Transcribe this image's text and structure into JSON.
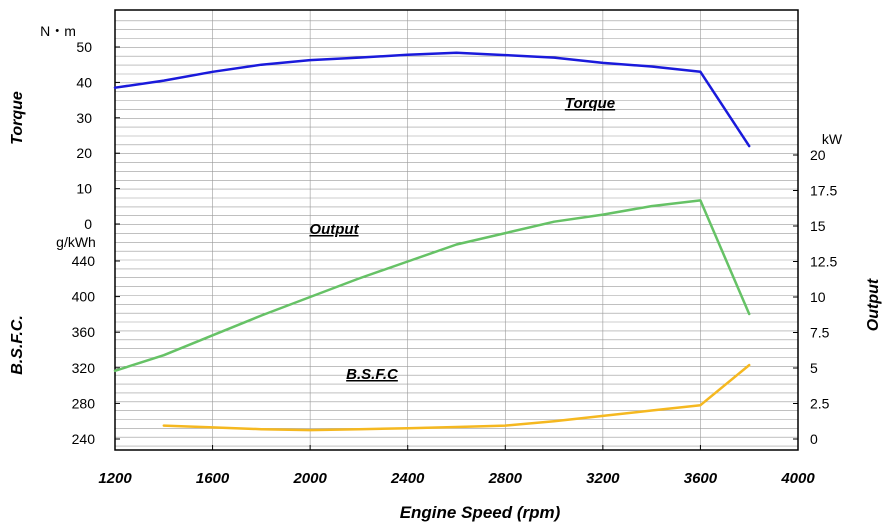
{
  "chart_data": {
    "type": "line",
    "xlabel": "Engine Speed  (rpm)",
    "x_ticks": [
      "1200",
      "1600",
      "2000",
      "2400",
      "2800",
      "3200",
      "3600",
      "4000"
    ],
    "xlim": [
      1200,
      4000
    ],
    "grid": true,
    "axes": {
      "torque": {
        "label": "Torque",
        "unit": "N・m",
        "ticks": [
          "0",
          "10",
          "20",
          "30",
          "40",
          "50"
        ],
        "range": [
          0,
          50
        ],
        "side": "left"
      },
      "bsfc": {
        "label": "B.S.F.C.",
        "unit": "g/kWh",
        "ticks": [
          "240",
          "280",
          "320",
          "360",
          "400",
          "440"
        ],
        "range": [
          240,
          440
        ],
        "side": "left"
      },
      "output": {
        "label": "Output",
        "unit": "kW",
        "ticks": [
          "0",
          "2.5",
          "5",
          "7.5",
          "10",
          "12.5",
          "15",
          "17.5",
          "20"
        ],
        "range": [
          0,
          20
        ],
        "side": "right"
      }
    },
    "series": [
      {
        "name": "Torque",
        "axis": "torque",
        "color": "#1a1adb",
        "x": [
          1200,
          1400,
          1600,
          1800,
          2000,
          2200,
          2400,
          2600,
          2800,
          3000,
          3200,
          3400,
          3600,
          3800
        ],
        "y": [
          38.5,
          40.5,
          43,
          45,
          46.3,
          47,
          47.8,
          48.4,
          47.7,
          47,
          45.5,
          44.5,
          43,
          22
        ]
      },
      {
        "name": "Output",
        "axis": "output",
        "color": "#66c266",
        "x": [
          1200,
          1400,
          1600,
          1800,
          2000,
          2200,
          2400,
          2600,
          2800,
          3000,
          3200,
          3400,
          3600,
          3800
        ],
        "y": [
          4.8,
          5.9,
          7.3,
          8.7,
          10,
          11.3,
          12.5,
          13.7,
          14.5,
          15.3,
          15.8,
          16.4,
          16.8,
          8.8
        ]
      },
      {
        "name": "B.S.F.C",
        "axis": "bsfc",
        "color": "#f5b820",
        "x": [
          1400,
          1600,
          1800,
          2000,
          2200,
          2400,
          2600,
          2800,
          3000,
          3200,
          3400,
          3600,
          3800
        ],
        "y": [
          255,
          253,
          251,
          250,
          251,
          252,
          253.5,
          255,
          260,
          266,
          272,
          278,
          323
        ]
      }
    ],
    "annotations": [
      "Torque",
      "Output",
      "B.S.F.C"
    ]
  }
}
